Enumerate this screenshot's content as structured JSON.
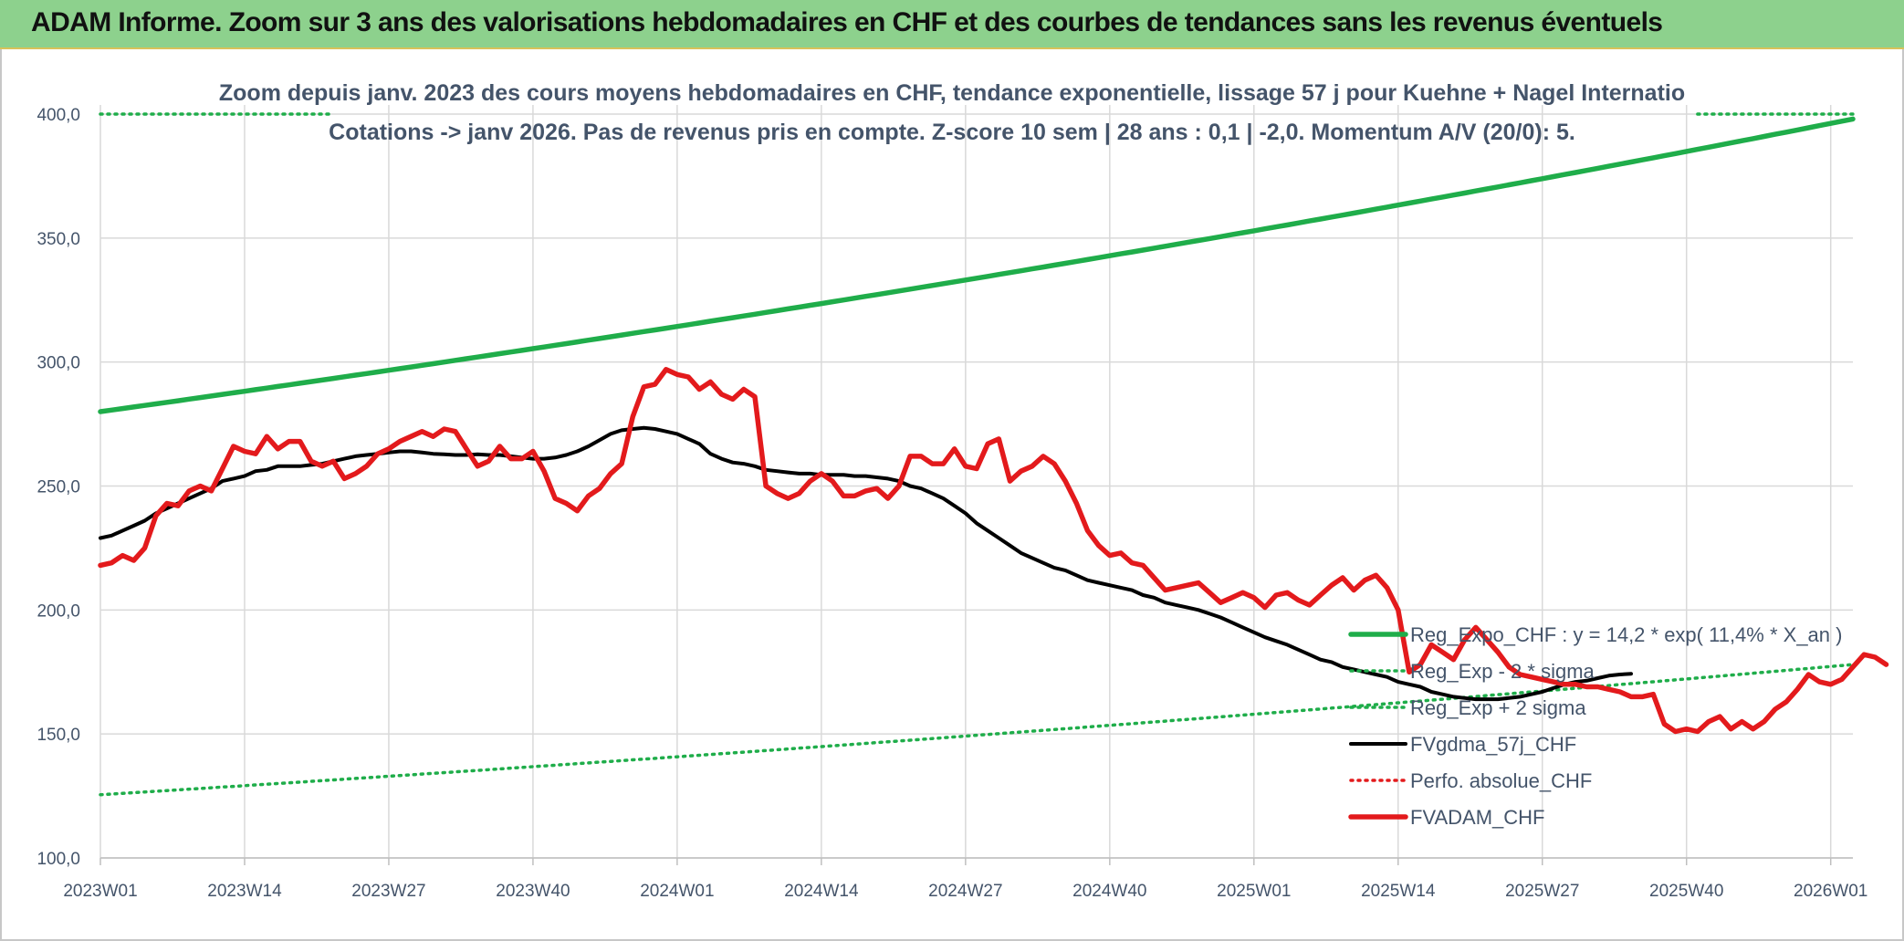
{
  "header": {
    "title": "ADAM Informe. Zoom sur 3 ans des valorisations hebdomadaires en CHF et des courbes de tendances sans les revenus éventuels"
  },
  "chart_data": {
    "type": "line",
    "subtitle_lines": [
      "Zoom depuis janv. 2023 des cours moyens hebdomadaires en CHF, tendance exponentielle, lissage 57 j pour Kuehne + Nagel Internatio",
      "Cotations -> janv 2026. Pas de revenus pris en compte. Z-score 10 sem | 28 ans : 0,1 | -2,0. Momentum A/V (20/0): 5."
    ],
    "ylim": [
      100,
      400
    ],
    "y_ticks": [
      "100,0",
      "150,0",
      "200,0",
      "250,0",
      "300,0",
      "350,0",
      "400,0"
    ],
    "x_ticks": [
      "2023W01",
      "2023W14",
      "2023W27",
      "2023W40",
      "2024W01",
      "2024W14",
      "2024W27",
      "2024W40",
      "2025W01",
      "2025W14",
      "2025W27",
      "2025W40",
      "2026W01"
    ],
    "x_tick_week_index": [
      0,
      13,
      26,
      39,
      52,
      65,
      78,
      91,
      104,
      117,
      130,
      143,
      156
    ],
    "grid": "vertical and horizontal",
    "legend_placement": "right",
    "series": [
      {
        "name": "Reg_Expo_CHF : y = 14,2 * exp( 11,4% *  X_an )",
        "style": "solid-thick",
        "color": "#1fad4a",
        "start": 280,
        "end": 398
      },
      {
        "name": "Reg_Exp - 2 * sigma",
        "style": "dotted",
        "color": "#1fad4a",
        "start": 125.5,
        "end": 178
      },
      {
        "name": "Reg_Exp + 2 sigma",
        "style": "dotted",
        "color": "#1fad4a",
        "start": 400,
        "end": 400
      },
      {
        "name": "FVgdma_57j_CHF",
        "style": "solid",
        "color": "#000000",
        "values": [
          229,
          230,
          232,
          234,
          236,
          239,
          241,
          243,
          245,
          247,
          249,
          252,
          253,
          254,
          256,
          256.5,
          258,
          258,
          258,
          258.5,
          259,
          260,
          261,
          262,
          262.5,
          263,
          263.5,
          264,
          264,
          263.5,
          263,
          262.8,
          262.5,
          262.5,
          262.8,
          262.5,
          262.5,
          262,
          261.5,
          261,
          261,
          261.5,
          262.5,
          264,
          266,
          268.5,
          271,
          272.5,
          273,
          273.5,
          273,
          272,
          271,
          269,
          267,
          263,
          261,
          259.5,
          259,
          258,
          256.5,
          256,
          255.5,
          255,
          255,
          254.5,
          254.5,
          254.5,
          254,
          254,
          253.5,
          253,
          252,
          250,
          249,
          247,
          245,
          242,
          239,
          235,
          232,
          229,
          226,
          223,
          221,
          219,
          217,
          216,
          214,
          212,
          211,
          210,
          209,
          208,
          206,
          205,
          203,
          202,
          201,
          200,
          198.5,
          197,
          195,
          193,
          191,
          189,
          187.5,
          186,
          184,
          182,
          180,
          179,
          177,
          176,
          175,
          174,
          173,
          171,
          170,
          169,
          167,
          166,
          165,
          164.5,
          164,
          164,
          164,
          164.5,
          165,
          166,
          167,
          168.5,
          170,
          171,
          171.5,
          172.5,
          173.5,
          174,
          174.3
        ]
      },
      {
        "name": "Perfo. absolue_CHF",
        "style": "dotted",
        "color": "#e31a1c",
        "values": []
      },
      {
        "name": "FVADAM_CHF",
        "style": "solid-thick",
        "color": "#e31a1c",
        "values": [
          218,
          219,
          222,
          220,
          225,
          238,
          243,
          242,
          248,
          250,
          248,
          257,
          266,
          264,
          263,
          270,
          265,
          268,
          268,
          260,
          258,
          260,
          253,
          255,
          258,
          263,
          265,
          268,
          270,
          272,
          270,
          273,
          272,
          265,
          258,
          260,
          266,
          261,
          261,
          264,
          256,
          245,
          243,
          240,
          246,
          249,
          255,
          259,
          278,
          290,
          291,
          297,
          295,
          294,
          289,
          292,
          287,
          285,
          289,
          286,
          250,
          247,
          245,
          247,
          252,
          255,
          252,
          246,
          246,
          248,
          249,
          245,
          250,
          262,
          262,
          259,
          259,
          265,
          258,
          257,
          267,
          269,
          252,
          256,
          258,
          262,
          259,
          252,
          243,
          232,
          226,
          222,
          223,
          219,
          218,
          213,
          208,
          209,
          210,
          211,
          207,
          203,
          205,
          207,
          205,
          201,
          206,
          207,
          204,
          202,
          206,
          210,
          213,
          208,
          212,
          214,
          209,
          200,
          175,
          178,
          186,
          183,
          180,
          188,
          193,
          188,
          183,
          177,
          174,
          173,
          172,
          171,
          170,
          170,
          169,
          169,
          168,
          167,
          165,
          165,
          166,
          154,
          151,
          152,
          151,
          155,
          157,
          152,
          155,
          152,
          155,
          160,
          163,
          168,
          174,
          171,
          170,
          172,
          177,
          182,
          181,
          178
        ]
      }
    ]
  }
}
